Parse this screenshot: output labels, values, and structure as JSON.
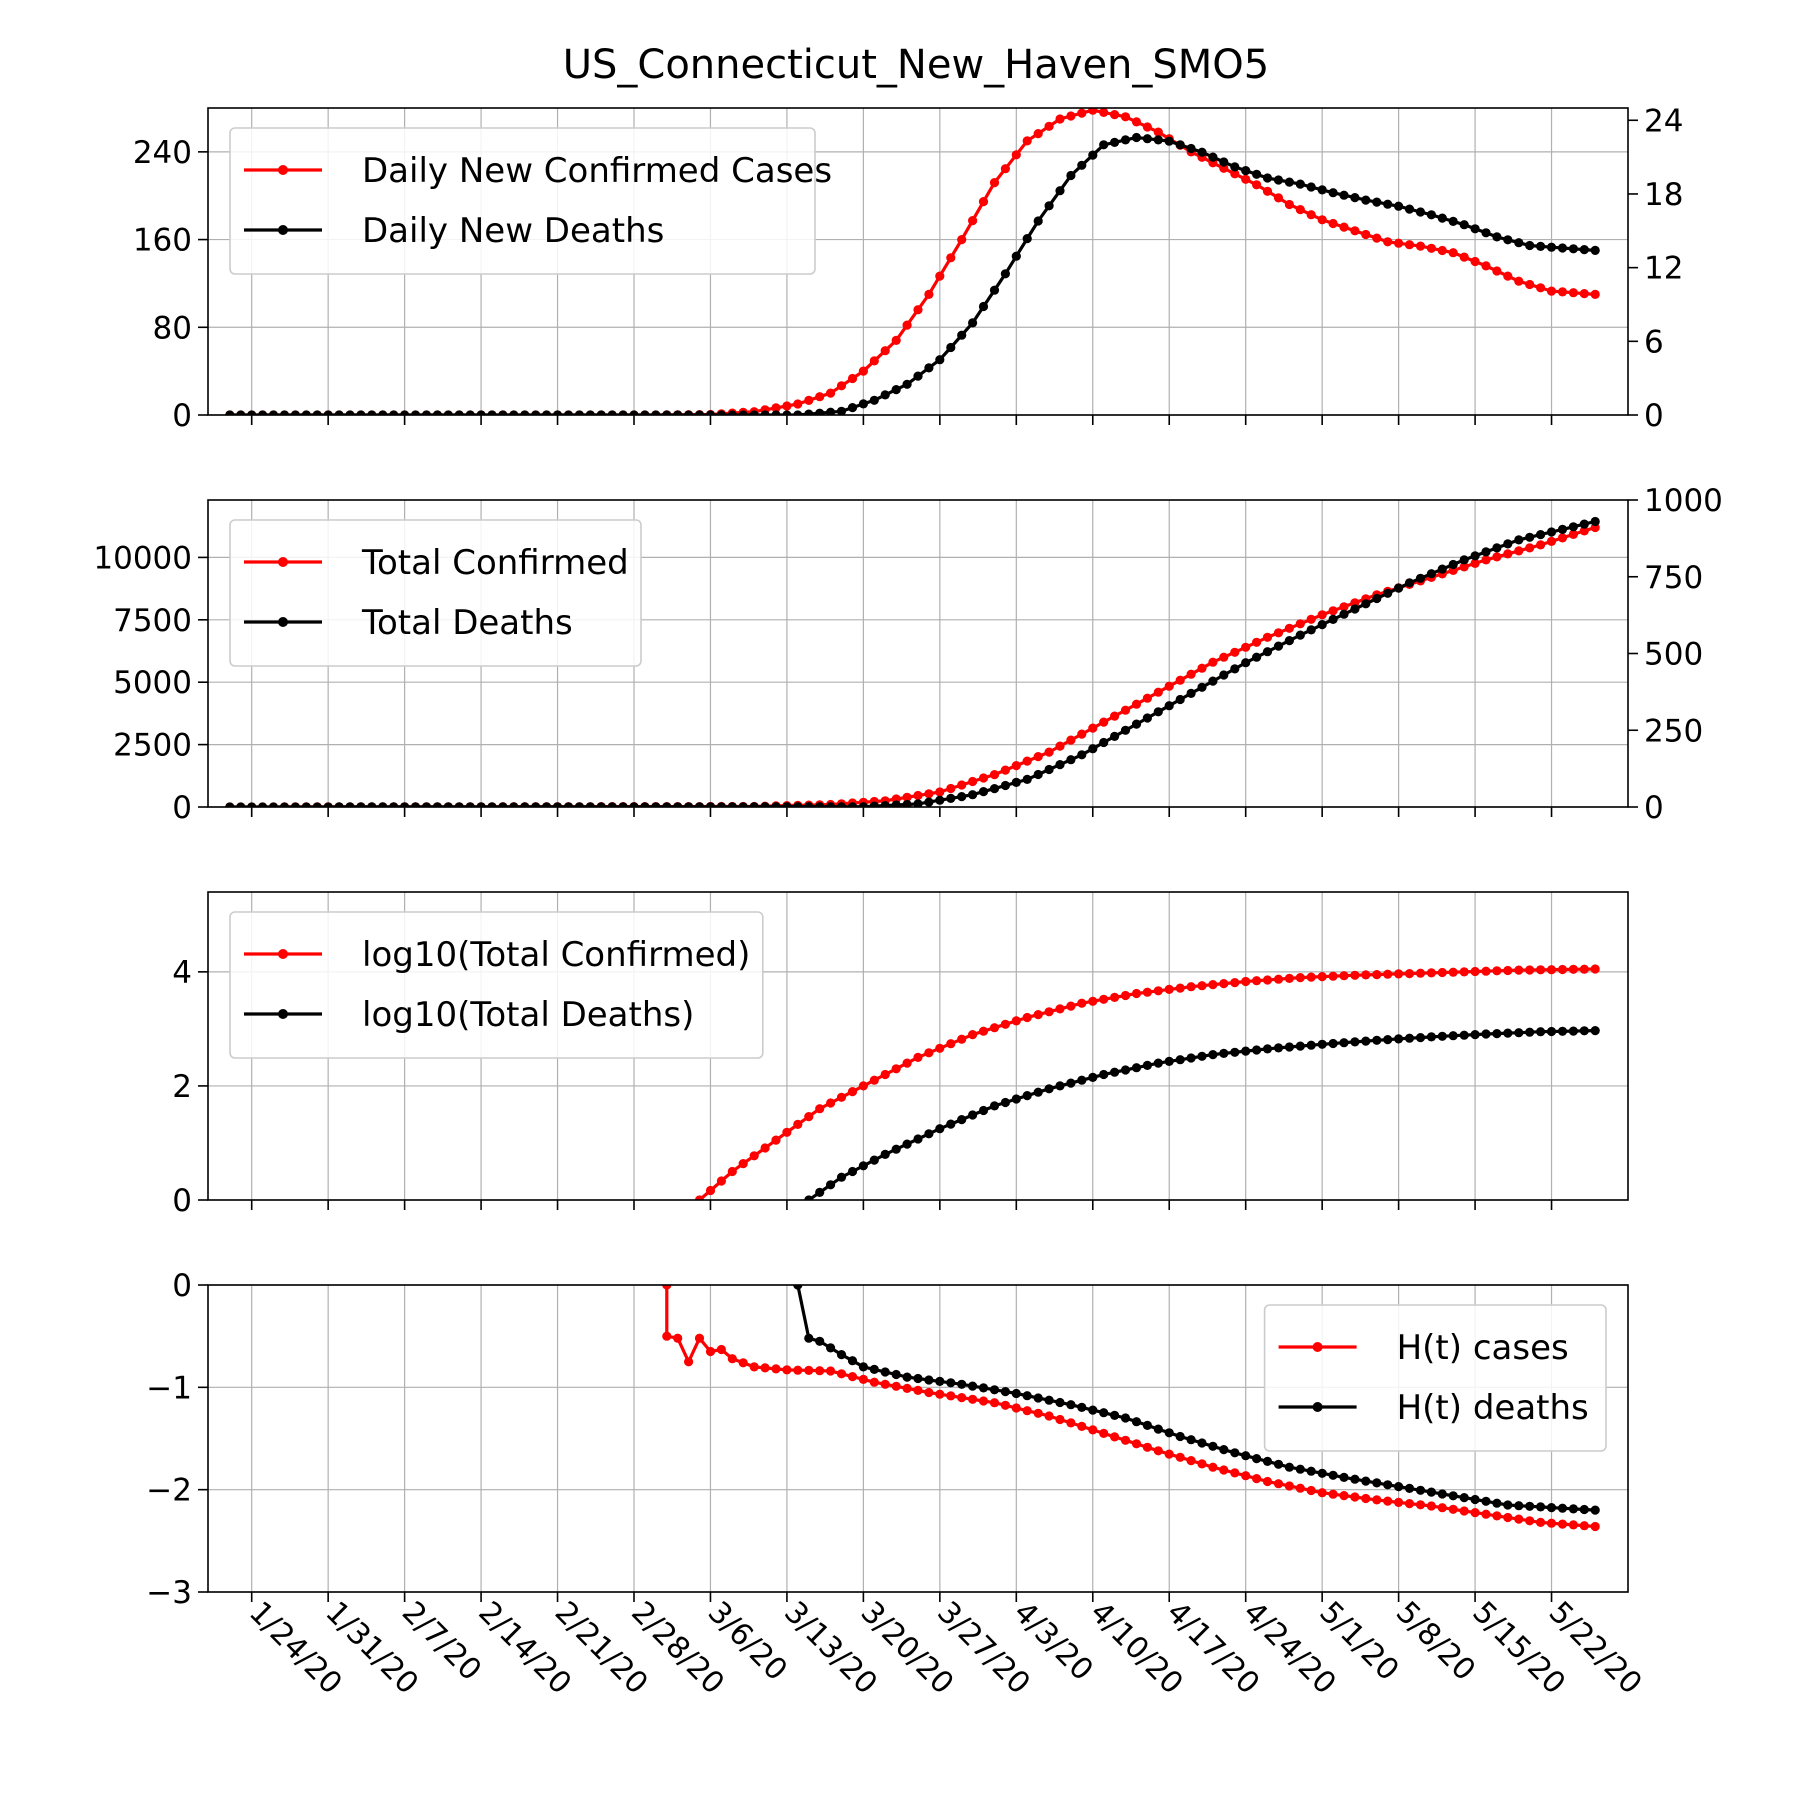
{
  "chart_data": {
    "title": "US_Connecticut_New_Haven_SMO5",
    "date_ticks": [
      "1/24/20",
      "1/31/20",
      "2/7/20",
      "2/14/20",
      "2/21/20",
      "2/28/20",
      "3/6/20",
      "3/13/20",
      "3/20/20",
      "3/27/20",
      "4/3/20",
      "4/10/20",
      "4/17/20",
      "4/24/20",
      "5/1/20",
      "5/8/20",
      "5/15/20",
      "5/22/20"
    ],
    "date_range": [
      "1/22/20",
      "5/26/20"
    ],
    "grid": true,
    "colors": {
      "cases": "#ff0000",
      "deaths": "#000000"
    },
    "panels": [
      {
        "type": "line",
        "left_axis": {
          "ylim": [
            0,
            280
          ],
          "ticks": [
            "0",
            "80",
            "160",
            "240"
          ]
        },
        "right_axis": {
          "ylim": [
            0,
            25
          ],
          "ticks": [
            "0",
            "6",
            "12",
            "18",
            "24"
          ]
        },
        "legend_position": "top-left",
        "series": [
          {
            "name": "Daily New Confirmed Cases",
            "axis": "left",
            "color": "#ff0000",
            "points": [
              [
                "1/22/20",
                0
              ],
              [
                "3/1/20",
                0
              ],
              [
                "3/6/20",
                0.5
              ],
              [
                "3/10/20",
                3
              ],
              [
                "3/14/20",
                10
              ],
              [
                "3/17/20",
                20
              ],
              [
                "3/20/20",
                40
              ],
              [
                "3/23/20",
                68
              ],
              [
                "3/26/20",
                110
              ],
              [
                "3/29/20",
                160
              ],
              [
                "4/1/20",
                212
              ],
              [
                "4/4/20",
                250
              ],
              [
                "4/7/20",
                270
              ],
              [
                "4/10/20",
                278
              ],
              [
                "4/13/20",
                272
              ],
              [
                "4/16/20",
                258
              ],
              [
                "4/19/20",
                240
              ],
              [
                "4/22/20",
                225
              ],
              [
                "4/25/20",
                210
              ],
              [
                "4/28/20",
                192
              ],
              [
                "5/1/20",
                178
              ],
              [
                "5/4/20",
                168
              ],
              [
                "5/7/20",
                158
              ],
              [
                "5/10/20",
                154
              ],
              [
                "5/13/20",
                148
              ],
              [
                "5/16/20",
                136
              ],
              [
                "5/19/20",
                122
              ],
              [
                "5/22/20",
                113
              ],
              [
                "5/26/20",
                110
              ]
            ]
          },
          {
            "name": "Daily New Deaths",
            "axis": "right",
            "color": "#000000",
            "points": [
              [
                "1/22/20",
                0
              ],
              [
                "3/14/20",
                0
              ],
              [
                "3/18/20",
                0.3
              ],
              [
                "3/21/20",
                1.2
              ],
              [
                "3/24/20",
                2.5
              ],
              [
                "3/27/20",
                4.5
              ],
              [
                "3/30/20",
                7.5
              ],
              [
                "4/2/20",
                11.5
              ],
              [
                "4/5/20",
                15.8
              ],
              [
                "4/8/20",
                19.5
              ],
              [
                "4/11/20",
                22
              ],
              [
                "4/14/20",
                22.6
              ],
              [
                "4/17/20",
                22.3
              ],
              [
                "4/20/20",
                21.4
              ],
              [
                "4/23/20",
                20.2
              ],
              [
                "4/26/20",
                19.3
              ],
              [
                "4/29/20",
                18.8
              ],
              [
                "5/2/20",
                18.1
              ],
              [
                "5/5/20",
                17.5
              ],
              [
                "5/8/20",
                17.0
              ],
              [
                "5/11/20",
                16.3
              ],
              [
                "5/14/20",
                15.5
              ],
              [
                "5/17/20",
                14.5
              ],
              [
                "5/20/20",
                13.8
              ],
              [
                "5/23/20",
                13.6
              ],
              [
                "5/26/20",
                13.4
              ]
            ]
          }
        ]
      },
      {
        "type": "line",
        "left_axis": {
          "ylim": [
            0,
            12300
          ],
          "ticks": [
            "0",
            "2500",
            "5000",
            "7500",
            "10000"
          ]
        },
        "right_axis": {
          "ylim": [
            0,
            1000
          ],
          "ticks": [
            "0",
            "250",
            "500",
            "750",
            "1000"
          ]
        },
        "legend_position": "top-left",
        "series": [
          {
            "name": "Total Confirmed",
            "axis": "left",
            "color": "#ff0000",
            "points": [
              [
                "1/22/20",
                0
              ],
              [
                "3/10/20",
                20
              ],
              [
                "3/17/20",
                100
              ],
              [
                "3/22/20",
                250
              ],
              [
                "3/27/20",
                600
              ],
              [
                "4/1/20",
                1300
              ],
              [
                "4/6/20",
                2200
              ],
              [
                "4/11/20",
                3400
              ],
              [
                "4/16/20",
                4600
              ],
              [
                "4/21/20",
                5800
              ],
              [
                "4/26/20",
                6800
              ],
              [
                "5/1/20",
                7700
              ],
              [
                "5/6/20",
                8500
              ],
              [
                "5/11/20",
                9200
              ],
              [
                "5/16/20",
                9900
              ],
              [
                "5/21/20",
                10500
              ],
              [
                "5/26/20",
                11200
              ]
            ]
          },
          {
            "name": "Total Deaths",
            "axis": "right",
            "color": "#000000",
            "points": [
              [
                "1/22/20",
                0
              ],
              [
                "3/20/20",
                1
              ],
              [
                "3/25/20",
                10
              ],
              [
                "3/30/20",
                40
              ],
              [
                "4/4/20",
                90
              ],
              [
                "4/9/20",
                170
              ],
              [
                "4/14/20",
                270
              ],
              [
                "4/19/20",
                370
              ],
              [
                "4/24/20",
                470
              ],
              [
                "4/29/20",
                560
              ],
              [
                "5/4/20",
                645
              ],
              [
                "5/9/20",
                730
              ],
              [
                "5/14/20",
                805
              ],
              [
                "5/19/20",
                870
              ],
              [
                "5/26/20",
                930
              ]
            ]
          }
        ]
      },
      {
        "type": "line",
        "left_axis": {
          "ylim": [
            0,
            5.4
          ],
          "ticks": [
            "0",
            "2",
            "4"
          ]
        },
        "legend_position": "top-left",
        "series": [
          {
            "name": "log10(Total Confirmed)",
            "axis": "left",
            "color": "#ff0000",
            "points": [
              [
                "3/5/20",
                0
              ],
              [
                "3/8/20",
                0.5
              ],
              [
                "3/12/20",
                1.05
              ],
              [
                "3/16/20",
                1.6
              ],
              [
                "3/20/20",
                2.0
              ],
              [
                "3/25/20",
                2.5
              ],
              [
                "3/30/20",
                2.9
              ],
              [
                "4/4/20",
                3.2
              ],
              [
                "4/9/20",
                3.45
              ],
              [
                "4/14/20",
                3.62
              ],
              [
                "4/19/20",
                3.74
              ],
              [
                "4/24/20",
                3.83
              ],
              [
                "4/29/20",
                3.9
              ],
              [
                "5/4/20",
                3.94
              ],
              [
                "5/9/20",
                3.97
              ],
              [
                "5/14/20",
                4.0
              ],
              [
                "5/19/20",
                4.03
              ],
              [
                "5/26/20",
                4.05
              ]
            ]
          },
          {
            "name": "log10(Total Deaths)",
            "axis": "left",
            "color": "#000000",
            "points": [
              [
                "3/15/20",
                0
              ],
              [
                "3/18/20",
                0.4
              ],
              [
                "3/22/20",
                0.8
              ],
              [
                "3/27/20",
                1.25
              ],
              [
                "4/1/20",
                1.65
              ],
              [
                "4/6/20",
                1.95
              ],
              [
                "4/11/20",
                2.2
              ],
              [
                "4/16/20",
                2.4
              ],
              [
                "4/21/20",
                2.55
              ],
              [
                "4/26/20",
                2.65
              ],
              [
                "5/1/20",
                2.73
              ],
              [
                "5/6/20",
                2.8
              ],
              [
                "5/11/20",
                2.86
              ],
              [
                "5/16/20",
                2.91
              ],
              [
                "5/21/20",
                2.95
              ],
              [
                "5/26/20",
                2.97
              ]
            ]
          }
        ]
      },
      {
        "type": "line",
        "left_axis": {
          "ylim": [
            -3,
            0
          ],
          "ticks": [
            "−3",
            "−2",
            "−1",
            "0"
          ]
        },
        "legend_position": "top-right",
        "series": [
          {
            "name": "H(t) cases",
            "axis": "left",
            "color": "#ff0000",
            "points": [
              [
                "3/2/20",
                0
              ],
              [
                "3/2/20",
                -0.5
              ],
              [
                "3/3/20",
                -0.52
              ],
              [
                "3/4/20",
                -0.75
              ],
              [
                "3/5/20",
                -0.52
              ],
              [
                "3/6/20",
                -0.65
              ],
              [
                "3/7/20",
                -0.63
              ],
              [
                "3/8/20",
                -0.72
              ],
              [
                "3/10/20",
                -0.8
              ],
              [
                "3/13/20",
                -0.83
              ],
              [
                "3/17/20",
                -0.84
              ],
              [
                "3/21/20",
                -0.95
              ],
              [
                "3/26/20",
                -1.05
              ],
              [
                "4/1/20",
                -1.15
              ],
              [
                "4/6/20",
                -1.28
              ],
              [
                "4/11/20",
                -1.45
              ],
              [
                "4/16/20",
                -1.62
              ],
              [
                "4/21/20",
                -1.78
              ],
              [
                "4/26/20",
                -1.92
              ],
              [
                "5/1/20",
                -2.03
              ],
              [
                "5/6/20",
                -2.1
              ],
              [
                "5/11/20",
                -2.16
              ],
              [
                "5/16/20",
                -2.24
              ],
              [
                "5/21/20",
                -2.32
              ],
              [
                "5/26/20",
                -2.36
              ]
            ]
          },
          {
            "name": "H(t) deaths",
            "axis": "left",
            "color": "#000000",
            "points": [
              [
                "3/14/20",
                0
              ],
              [
                "3/15/20",
                -0.52
              ],
              [
                "3/16/20",
                -0.55
              ],
              [
                "3/18/20",
                -0.68
              ],
              [
                "3/20/20",
                -0.8
              ],
              [
                "3/24/20",
                -0.9
              ],
              [
                "3/29/20",
                -0.97
              ],
              [
                "4/3/20",
                -1.06
              ],
              [
                "4/8/20",
                -1.17
              ],
              [
                "4/13/20",
                -1.3
              ],
              [
                "4/18/20",
                -1.48
              ],
              [
                "4/23/20",
                -1.64
              ],
              [
                "4/28/20",
                -1.78
              ],
              [
                "5/3/20",
                -1.88
              ],
              [
                "5/8/20",
                -1.97
              ],
              [
                "5/13/20",
                -2.06
              ],
              [
                "5/18/20",
                -2.15
              ],
              [
                "5/26/20",
                -2.2
              ]
            ]
          }
        ]
      }
    ]
  }
}
